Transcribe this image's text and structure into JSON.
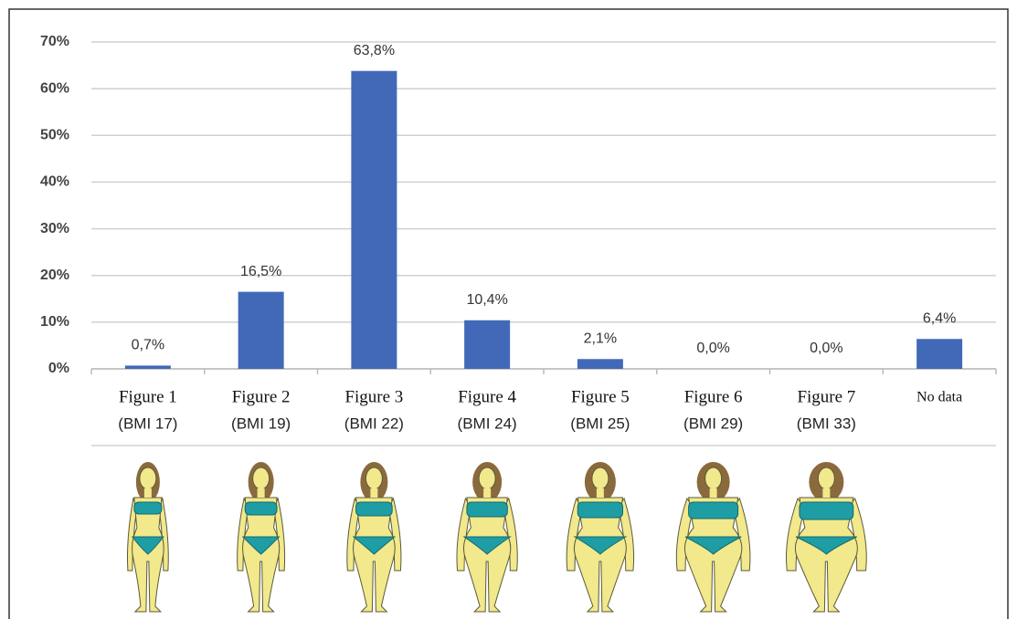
{
  "chart_data": {
    "type": "bar",
    "categories": [
      "Figure 1",
      "Figure  2",
      "Figure 3",
      "Figure  4",
      "Figure 5",
      "Figure 6",
      "Figure 7",
      "No data"
    ],
    "category_sublabels": [
      "(BMI 17)",
      "(BMI 19)",
      "(BMI 22)",
      "(BMI 24)",
      "(BMI 25)",
      "(BMI 29)",
      "(BMI 33)",
      null
    ],
    "values": [
      0.7,
      16.5,
      63.8,
      10.4,
      2.1,
      0.0,
      0.0,
      6.4
    ],
    "value_labels": [
      "0,7%",
      "16,5%",
      "63,8%",
      "10,4%",
      "2,1%",
      "0,0%",
      "0,0%",
      "6,4%"
    ],
    "color": "#4169b8",
    "ylim": [
      0,
      70
    ],
    "yticks": [
      {
        "value": 0,
        "label": "0%"
      },
      {
        "value": 10,
        "label": "10%"
      },
      {
        "value": 20,
        "label": "20%"
      },
      {
        "value": 30,
        "label": "30%"
      },
      {
        "value": 40,
        "label": "40%"
      },
      {
        "value": 50,
        "label": "50%"
      },
      {
        "value": 60,
        "label": "60%"
      },
      {
        "value": 70,
        "label": "70%"
      }
    ],
    "grid": true
  }
}
